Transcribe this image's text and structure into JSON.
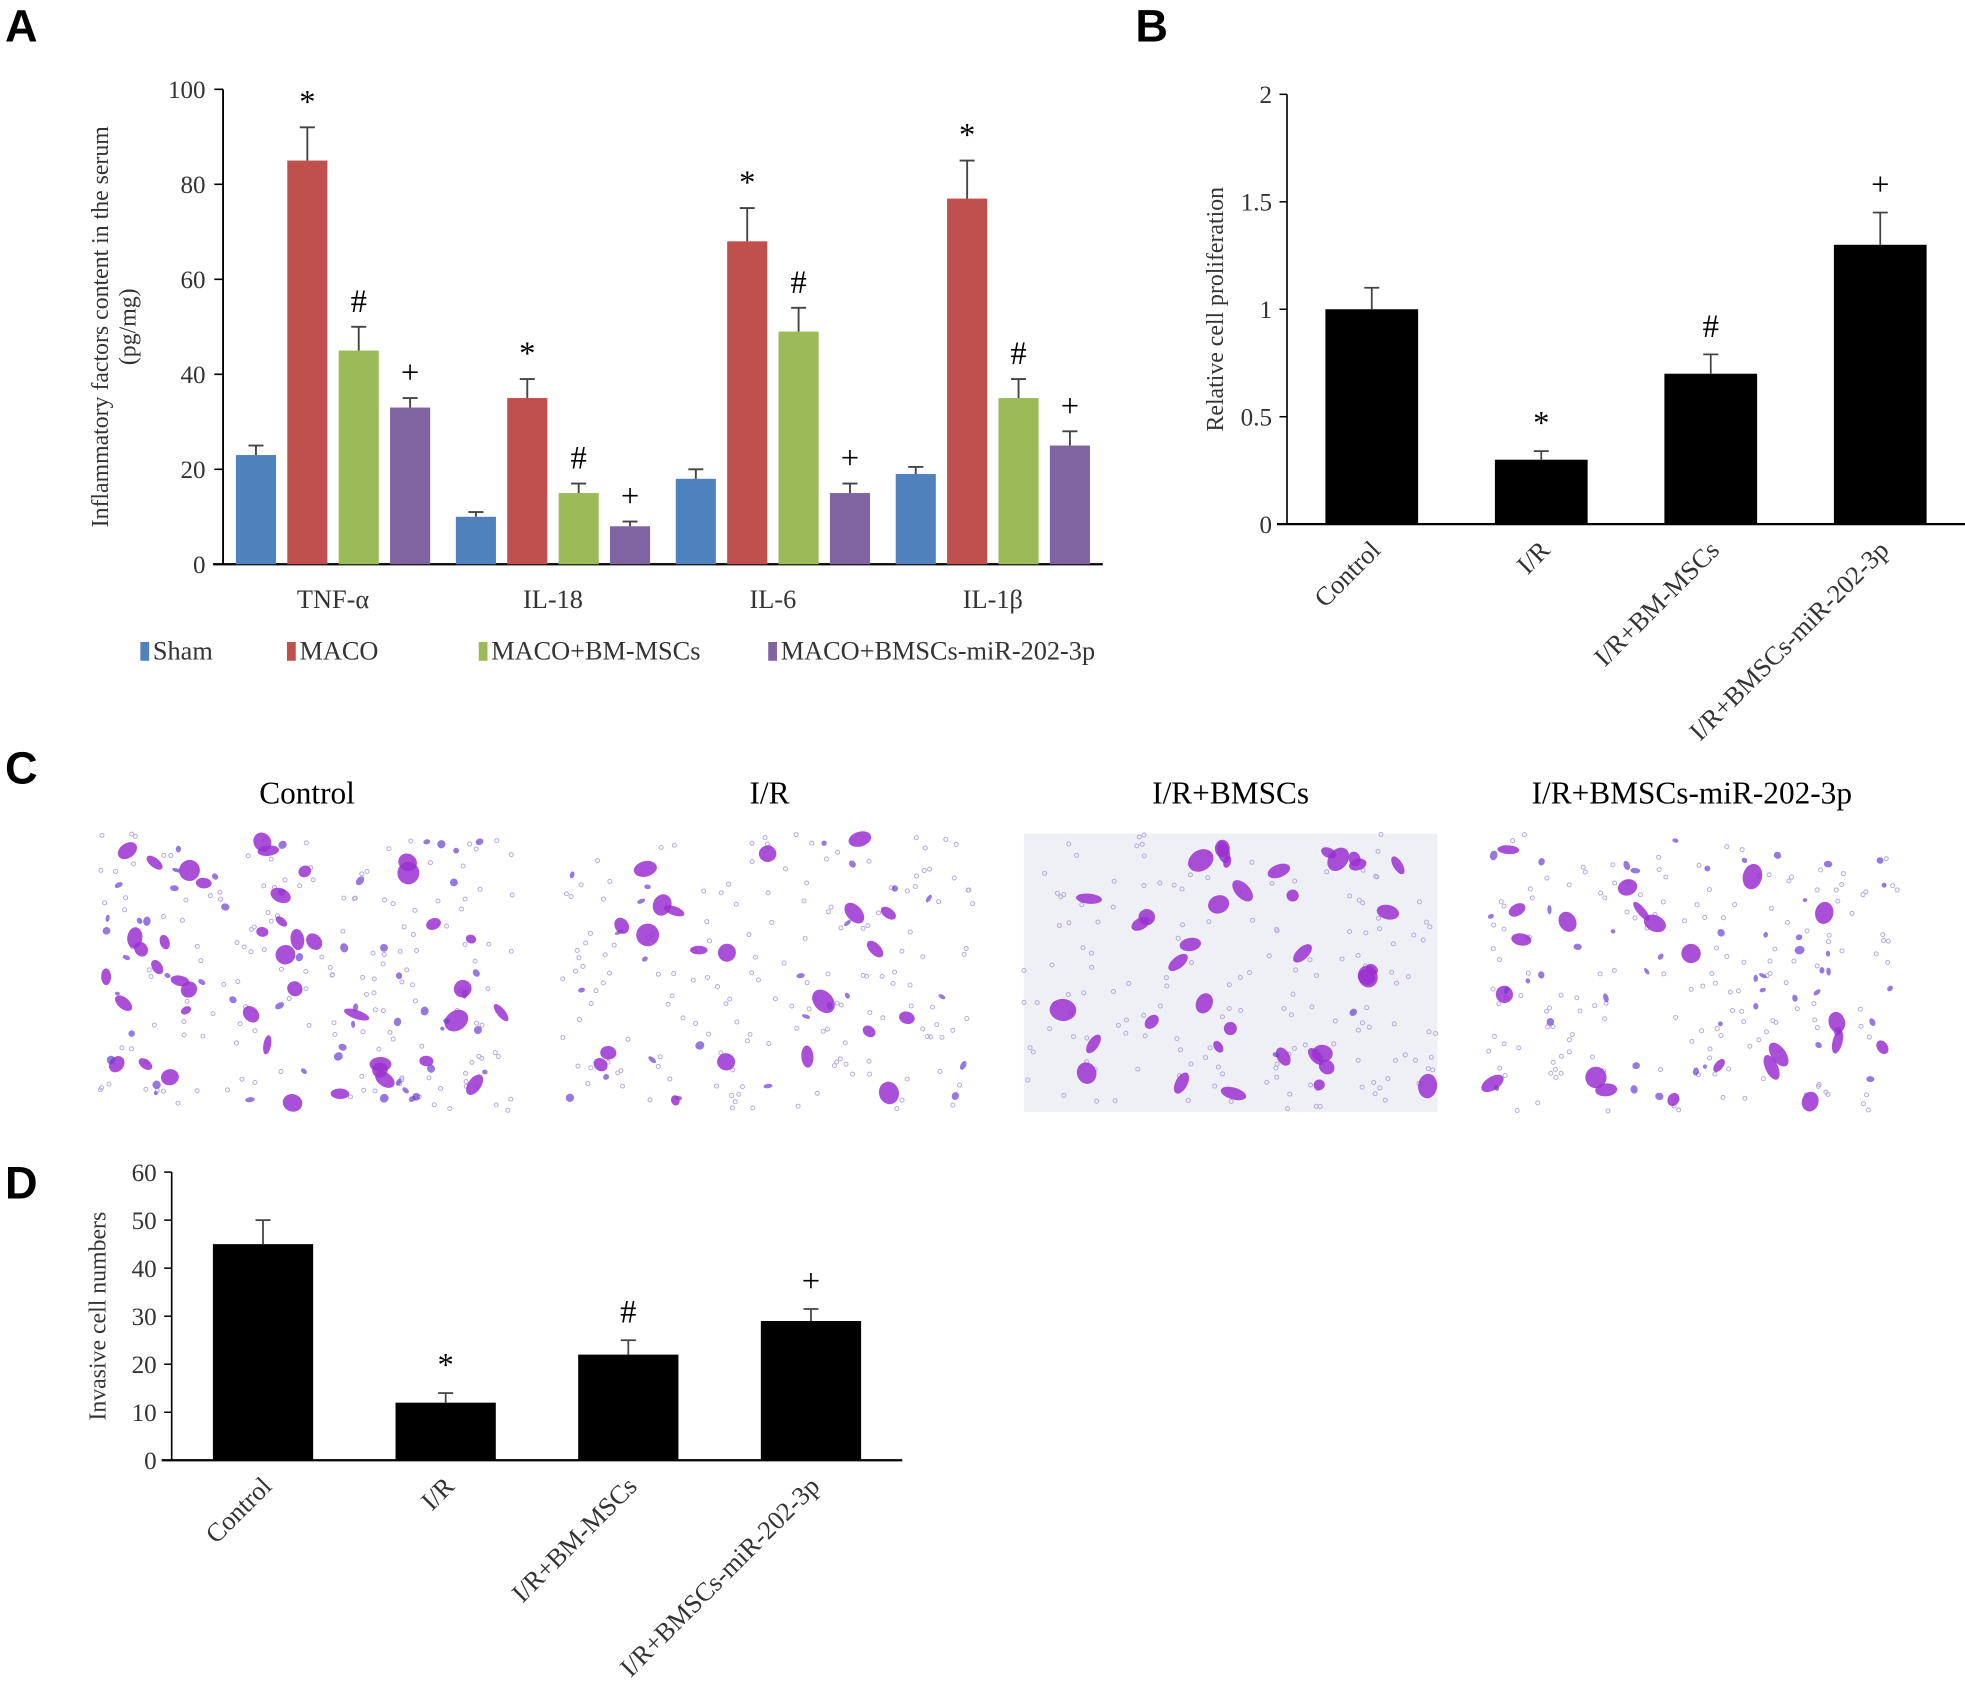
{
  "figure": {
    "panel_labels": [
      "A",
      "B",
      "C",
      "D"
    ]
  },
  "chart_data": [
    {
      "panel": "A",
      "type": "bar",
      "title": "",
      "xlabel": "",
      "ylabel": "Inflammatory factors content in the serum (pg/mg)",
      "ylabel_lines": [
        "Inflammatory factors content in the serum",
        "(pg/mg)"
      ],
      "ylim": [
        0,
        100
      ],
      "yticks": [
        0,
        20,
        40,
        60,
        80,
        100
      ],
      "categories": [
        "TNF-α",
        "IL-18",
        "IL-6",
        "IL-1β"
      ],
      "series": [
        {
          "name": "Sham",
          "color": "#4f81bd",
          "values": [
            23,
            10,
            18,
            19
          ],
          "error_top": [
            25,
            11,
            20,
            20.5
          ],
          "markers": [
            "",
            "",
            "",
            ""
          ]
        },
        {
          "name": "MACO",
          "color": "#c0504d",
          "values": [
            85,
            35,
            68,
            77
          ],
          "error_top": [
            92,
            39,
            75,
            85
          ],
          "markers": [
            "*",
            "*",
            "*",
            "*"
          ]
        },
        {
          "name": "MACO+BM-MSCs",
          "color": "#9bbb59",
          "values": [
            45,
            15,
            49,
            35
          ],
          "error_top": [
            50,
            17,
            54,
            39
          ],
          "markers": [
            "#",
            "#",
            "#",
            "#"
          ]
        },
        {
          "name": "MACO+BMSCs-miR-202-3p",
          "color": "#8064a2",
          "values": [
            33,
            8,
            15,
            25
          ],
          "error_top": [
            35,
            9,
            17,
            28
          ],
          "markers": [
            "+",
            "+",
            "+",
            "+"
          ]
        }
      ],
      "grid": false,
      "legend": "bottom"
    },
    {
      "panel": "B",
      "type": "bar",
      "title": "",
      "xlabel": "",
      "ylabel": "Relative cell proliferation",
      "ylim": [
        0,
        2
      ],
      "yticks": [
        "0",
        "0.5",
        "1",
        "1.5",
        "2"
      ],
      "ytick_values": [
        0,
        0.5,
        1,
        1.5,
        2
      ],
      "categories": [
        "Control",
        "I/R",
        "I/R+BM-MSCs",
        "I/R+BMSCs-miR-202-3p"
      ],
      "values": [
        1.0,
        0.3,
        0.7,
        1.3
      ],
      "error_top": [
        1.1,
        0.34,
        0.79,
        1.45
      ],
      "markers": [
        "",
        "*",
        "#",
        "+"
      ],
      "color": "#000000",
      "grid": false
    },
    {
      "panel": "D",
      "type": "bar",
      "title": "",
      "xlabel": "",
      "ylabel": "Invasive cell numbers",
      "ylim": [
        0,
        60
      ],
      "yticks": [
        "0",
        "10",
        "20",
        "30",
        "40",
        "50",
        "60"
      ],
      "ytick_values": [
        0,
        10,
        20,
        30,
        40,
        50,
        60
      ],
      "categories": [
        "Control",
        "I/R",
        "I/R+BM-MSCs",
        "I/R+BMSCs-miR-202-3p"
      ],
      "values": [
        45,
        12,
        22,
        29
      ],
      "error_top": [
        50,
        14,
        25,
        31.5
      ],
      "markers": [
        "",
        "*",
        "#",
        "+"
      ],
      "color": "#000000",
      "grid": false
    }
  ],
  "panel_c": {
    "images": [
      {
        "title": "Control",
        "description": "Transwell invasion micrograph, crystal violet stained cells (dense)"
      },
      {
        "title": "I/R",
        "description": "Transwell invasion micrograph, sparse stained cells"
      },
      {
        "title": "I/R+BMSCs",
        "description": "Transwell invasion micrograph, moderate stained cells on grey membrane"
      },
      {
        "title": "I/R+BMSCs-miR-202-3p",
        "description": "Transwell invasion micrograph, scattered stained cells"
      }
    ],
    "stain_color": "#9b30d0"
  }
}
